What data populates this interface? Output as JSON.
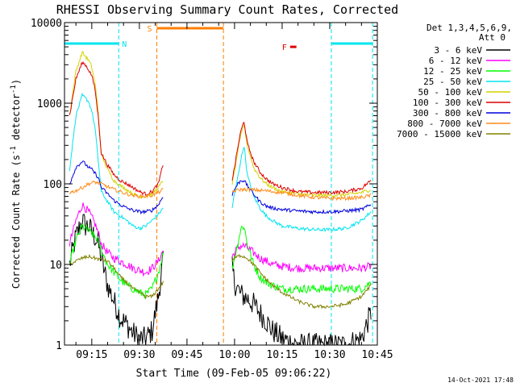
{
  "chart_data": {
    "type": "line",
    "title": "RHESSI Observing Summary Count Rates, Corrected",
    "xlabel": "Start Time (09-Feb-05 09:06:22)",
    "ylabel_main": "Corrected Count Rate (s",
    "ylabel_sup1": "-1",
    "ylabel_mid": " detector",
    "ylabel_sup2": "-1",
    "ylabel_end": ")",
    "y_scale": "log",
    "ylim": [
      1,
      10000
    ],
    "xlim_minutes_from_0900": [
      6.4,
      105
    ],
    "x_tick_labels": [
      "09:15",
      "09:30",
      "09:45",
      "10:00",
      "10:15",
      "10:30",
      "10:45"
    ],
    "x_tick_minutes": [
      15,
      30,
      45,
      60,
      75,
      90,
      105
    ],
    "y_tick_labels": [
      "1",
      "10",
      "100",
      "1000",
      "10000"
    ],
    "y_tick_values": [
      1,
      10,
      100,
      1000,
      10000
    ],
    "legend_header_1": "Det 1,3,4,5,6,9,",
    "legend_header_2": "Att 0",
    "legend_position": "right",
    "footer_date": "14-Oct-2021 17:48",
    "flags": {
      "N": {
        "label": "N",
        "color": "#00e5ee",
        "segments": [
          [
            6.4,
            23.5
          ],
          [
            90.5,
            103.5
          ]
        ],
        "level": 5500
      },
      "S": {
        "label": "S",
        "color": "#ff7f00",
        "segments": [
          [
            35.5,
            56.5
          ]
        ],
        "level": 8500
      },
      "F": {
        "label": "F",
        "color": "#dd0000",
        "segments": [
          [
            77.5,
            79.5
          ]
        ],
        "level": 5000
      }
    },
    "gaps_minutes": [
      [
        37.5,
        59.0
      ]
    ],
    "series": [
      {
        "name": "3 - 6 keV",
        "color": "#000000",
        "x": [
          8,
          10,
          12,
          13,
          14,
          15,
          16,
          17,
          18,
          20,
          22,
          24,
          26,
          28,
          30,
          32,
          34,
          36,
          37.5,
          59,
          60,
          61,
          62,
          63,
          64,
          66,
          68,
          70,
          72,
          75,
          80,
          85,
          90,
          95,
          100,
          103
        ],
        "y": [
          10,
          22,
          35,
          30,
          30,
          25,
          22,
          18,
          12,
          5.5,
          3.5,
          2.2,
          1.8,
          1.4,
          1.2,
          1.2,
          1.5,
          4,
          12,
          10,
          6,
          5,
          4.2,
          4,
          3.8,
          3.2,
          2.5,
          2,
          1.5,
          1.2,
          1,
          1,
          1,
          1,
          1.2,
          2.5
        ]
      },
      {
        "name": "6 - 12 keV",
        "color": "#ff00ff",
        "x": [
          8,
          10,
          12,
          13,
          14,
          15,
          16,
          17,
          18,
          20,
          22,
          24,
          26,
          28,
          30,
          32,
          34,
          36,
          37.5,
          59,
          60,
          61,
          62,
          63,
          64,
          66,
          68,
          70,
          72,
          75,
          80,
          85,
          90,
          95,
          100,
          103
        ],
        "y": [
          18,
          35,
          55,
          50,
          45,
          38,
          32,
          25,
          18,
          14,
          12,
          11,
          10,
          9,
          8.5,
          8,
          9,
          11,
          15,
          12,
          14,
          16,
          17,
          17,
          16,
          14,
          12,
          11,
          10,
          9.5,
          9,
          9,
          9,
          9,
          9,
          9.5
        ]
      },
      {
        "name": "12 - 25 keV",
        "color": "#00ff00",
        "x": [
          8,
          10,
          12,
          13,
          14,
          15,
          16,
          17,
          18,
          20,
          22,
          24,
          26,
          28,
          30,
          32,
          34,
          36,
          37.5,
          59,
          60,
          61,
          62,
          63,
          64,
          66,
          68,
          70,
          72,
          75,
          80,
          85,
          90,
          95,
          100,
          103
        ],
        "y": [
          10,
          20,
          30,
          28,
          26,
          24,
          22,
          20,
          15,
          10,
          8,
          6.5,
          5.5,
          5,
          4.5,
          4.2,
          5,
          8,
          14,
          8,
          12,
          18,
          28,
          30,
          18,
          10,
          7,
          6,
          5.5,
          5,
          5,
          5,
          5,
          5,
          5,
          6
        ]
      },
      {
        "name": "25 - 50 keV",
        "color": "#00e5ee",
        "x": [
          8,
          10,
          12,
          13,
          14,
          15,
          16,
          17,
          18,
          20,
          22,
          24,
          26,
          28,
          30,
          32,
          34,
          36,
          37.5,
          59,
          60,
          61,
          62,
          63,
          64,
          66,
          68,
          70,
          72,
          75,
          80,
          85,
          90,
          95,
          100,
          103
        ],
        "y": [
          150,
          700,
          1250,
          1150,
          1050,
          800,
          500,
          200,
          80,
          60,
          45,
          40,
          35,
          30,
          28,
          30,
          35,
          42,
          50,
          45,
          75,
          120,
          200,
          300,
          130,
          70,
          50,
          40,
          35,
          30,
          28,
          27,
          27,
          28,
          35,
          45
        ]
      },
      {
        "name": "50 - 100 keV",
        "color": "#d4d400",
        "x": [
          8,
          10,
          12,
          13,
          14,
          15,
          16,
          17,
          18,
          20,
          22,
          24,
          26,
          28,
          30,
          32,
          34,
          36,
          37.5,
          59,
          60,
          61,
          62,
          63,
          64,
          66,
          68,
          70,
          72,
          75,
          80,
          85,
          90,
          95,
          100,
          103
        ],
        "y": [
          700,
          2500,
          4300,
          3800,
          3400,
          2800,
          1800,
          800,
          230,
          150,
          110,
          95,
          85,
          75,
          70,
          70,
          75,
          90,
          110,
          90,
          140,
          250,
          400,
          550,
          300,
          160,
          120,
          100,
          90,
          80,
          75,
          72,
          72,
          73,
          78,
          85
        ]
      },
      {
        "name": "100 - 300 keV",
        "color": "#dd0000",
        "x": [
          8,
          10,
          12,
          13,
          14,
          15,
          16,
          17,
          18,
          20,
          22,
          24,
          26,
          28,
          30,
          32,
          34,
          36,
          37.5,
          59,
          60,
          61,
          62,
          63,
          64,
          66,
          68,
          70,
          72,
          75,
          80,
          85,
          90,
          95,
          100,
          103
        ],
        "y": [
          700,
          2000,
          3200,
          3000,
          2600,
          2200,
          1500,
          700,
          240,
          170,
          130,
          110,
          100,
          90,
          80,
          75,
          80,
          100,
          175,
          100,
          160,
          280,
          450,
          600,
          320,
          190,
          140,
          115,
          100,
          90,
          80,
          78,
          78,
          80,
          88,
          110
        ]
      },
      {
        "name": "300 - 800 keV",
        "color": "#0000dd",
        "x": [
          8,
          10,
          12,
          13,
          14,
          15,
          16,
          17,
          18,
          20,
          22,
          24,
          26,
          28,
          30,
          32,
          34,
          36,
          37.5,
          59,
          60,
          61,
          62,
          63,
          64,
          66,
          68,
          70,
          72,
          75,
          80,
          85,
          90,
          95,
          100,
          103
        ],
        "y": [
          100,
          160,
          190,
          175,
          160,
          150,
          135,
          120,
          90,
          75,
          62,
          55,
          50,
          47,
          45,
          45,
          47,
          55,
          70,
          70,
          85,
          100,
          110,
          110,
          95,
          75,
          60,
          53,
          50,
          48,
          46,
          45,
          45,
          46,
          48,
          55
        ]
      },
      {
        "name": "800 - 7000 keV",
        "color": "#ff8c1a",
        "x": [
          8,
          10,
          12,
          14,
          16,
          18,
          20,
          22,
          24,
          26,
          28,
          30,
          32,
          34,
          36,
          37.5,
          59,
          60,
          62,
          64,
          66,
          68,
          70,
          72,
          75,
          80,
          85,
          90,
          95,
          100,
          103
        ],
        "y": [
          78,
          82,
          90,
          100,
          105,
          100,
          92,
          85,
          80,
          75,
          72,
          70,
          70,
          72,
          78,
          85,
          80,
          82,
          85,
          85,
          84,
          83,
          82,
          80,
          78,
          72,
          68,
          66,
          66,
          68,
          72
        ]
      },
      {
        "name": "7000 - 15000 keV",
        "color": "#808000",
        "x": [
          8,
          10,
          12,
          14,
          16,
          18,
          20,
          22,
          24,
          26,
          28,
          30,
          32,
          34,
          36,
          37.5,
          59,
          60,
          62,
          64,
          66,
          68,
          70,
          72,
          75,
          80,
          85,
          90,
          95,
          100,
          103
        ],
        "y": [
          10,
          11,
          12,
          12.5,
          12,
          11.5,
          11,
          9,
          7,
          6,
          5,
          4.5,
          4,
          4,
          5,
          6,
          11,
          12,
          13,
          12,
          10,
          8,
          6.5,
          5.5,
          4.5,
          3.5,
          3,
          3,
          3.2,
          4,
          5.5
        ]
      }
    ]
  }
}
